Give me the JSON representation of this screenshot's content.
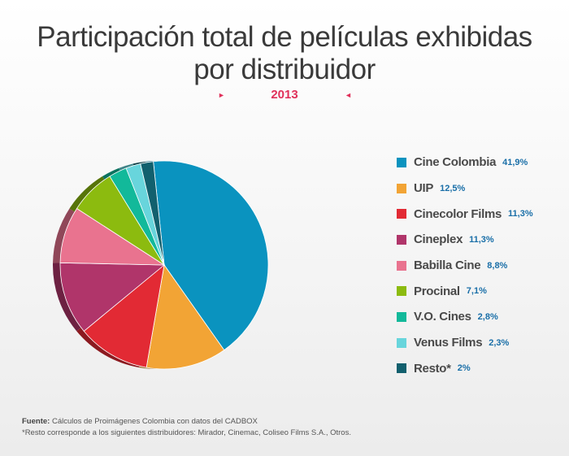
{
  "chart_data": {
    "type": "pie",
    "title": "Participación total de películas exhibidas por distribuidor",
    "subtitle": "2013",
    "slices": [
      {
        "label": "Cine Colombia",
        "value": 41.9,
        "display": "41,9%",
        "color": "#0a93bf"
      },
      {
        "label": "UIP",
        "value": 12.5,
        "display": "12,5%",
        "color": "#f2a435"
      },
      {
        "label": "Cinecolor Films",
        "value": 11.3,
        "display": "11,3%",
        "color": "#e22a34"
      },
      {
        "label": "Cineplex",
        "value": 11.3,
        "display": "11,3%",
        "color": "#b0356a"
      },
      {
        "label": "Babilla Cine",
        "value": 8.8,
        "display": "8,8%",
        "color": "#e9738f"
      },
      {
        "label": "Procinal",
        "value": 7.1,
        "display": "7,1%",
        "color": "#8cbb0f"
      },
      {
        "label": "V.O. Cines",
        "value": 2.8,
        "display": "2,8%",
        "color": "#12b99a"
      },
      {
        "label": "Venus Films",
        "value": 2.3,
        "display": "2,3%",
        "color": "#68d5dc"
      },
      {
        "label": "Resto*",
        "value": 2.0,
        "display": "2%",
        "color": "#12606e"
      }
    ],
    "legend_position": "right"
  },
  "title_line1": "Participación total de películas exhibidas",
  "title_line2": "por distribuidor",
  "year": "2013",
  "footer": {
    "source_label": "Fuente:",
    "source_text": " Cálculos de Proimágenes Colombia con datos del CADBOX",
    "note": "*Resto corresponde a los siguientes distribuidores: Mirador,  Cinemac, Coliseo Films S.A., Otros."
  }
}
